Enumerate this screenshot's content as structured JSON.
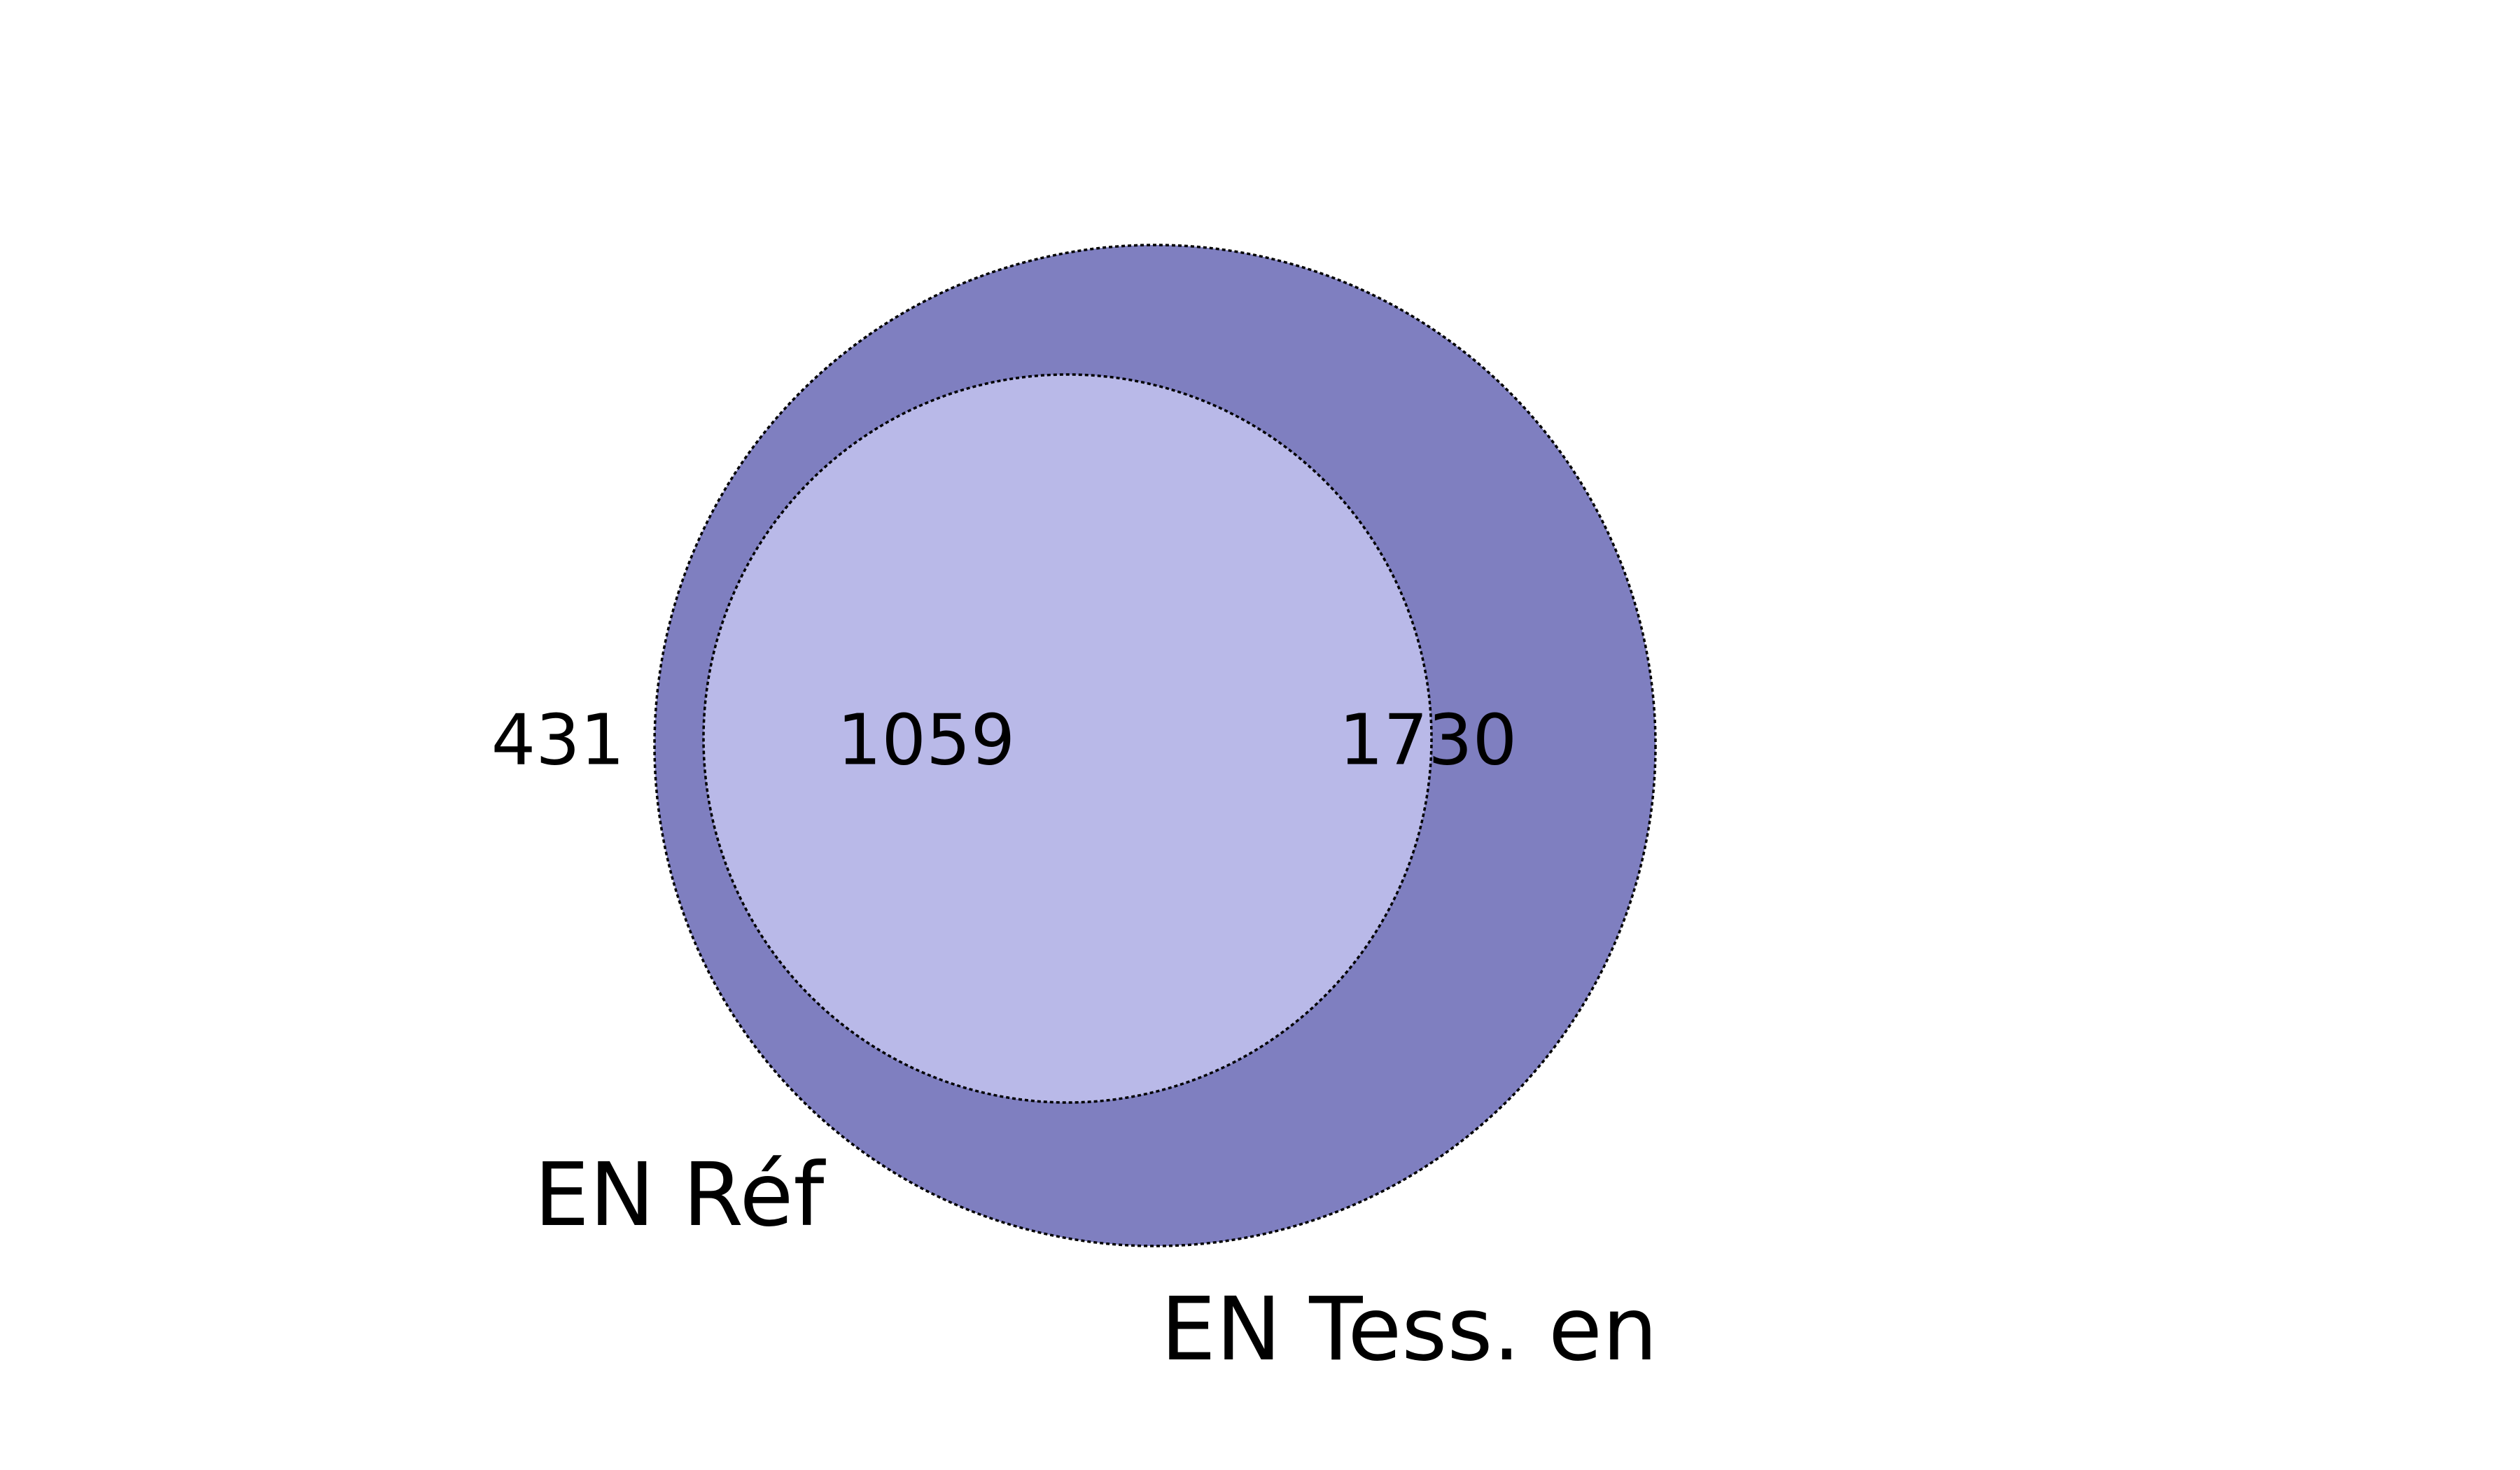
{
  "venn": {
    "sets": [
      {
        "label": "EN Réf",
        "size": 1490,
        "color": "#d4d4d4"
      },
      {
        "label": "EN Tess. en",
        "size": 2789,
        "color": "#7f7fc0"
      }
    ],
    "overlap_color": "#b9b9e8",
    "regions": {
      "only_a": "431",
      "both": "1059",
      "only_b": "1730"
    }
  }
}
